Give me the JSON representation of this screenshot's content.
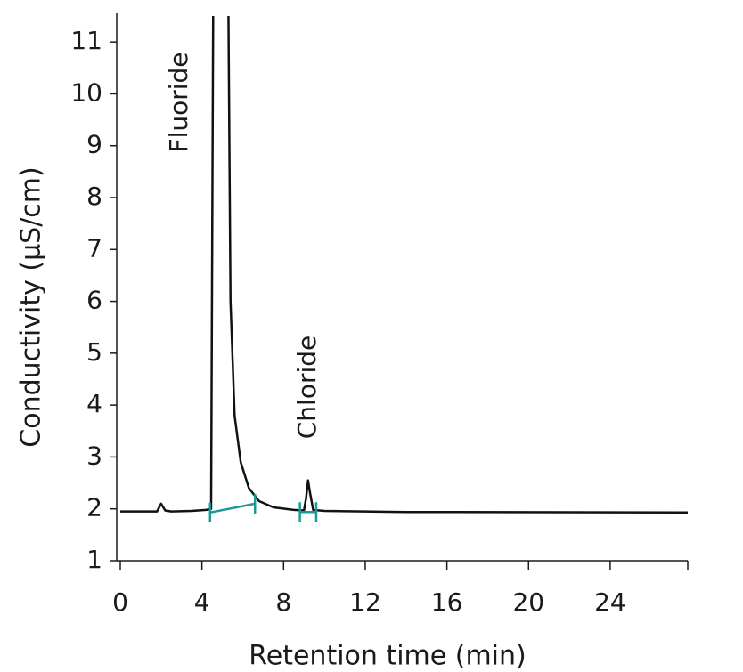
{
  "chart_data": {
    "type": "line",
    "xlabel": "Retention time (min)",
    "ylabel": "Conductivity (µS/cm)",
    "xlim": [
      0,
      27.8
    ],
    "ylim": [
      1,
      11.5
    ],
    "xticks": [
      0,
      4,
      8,
      12,
      16,
      20,
      24
    ],
    "yticks": [
      1,
      2,
      3,
      4,
      5,
      6,
      7,
      8,
      9,
      10,
      11
    ],
    "series": [
      {
        "color": "#111111",
        "x": [
          0,
          1.8,
          2.0,
          2.2,
          2.5,
          3.5,
          4.2,
          4.45,
          4.55,
          null,
          5.3,
          5.4,
          5.6,
          5.9,
          6.3,
          6.8,
          7.5,
          8.5,
          9.0,
          9.1,
          9.2,
          9.3,
          9.45,
          10,
          14,
          27.8
        ],
        "values": [
          1.95,
          1.95,
          2.1,
          1.97,
          1.95,
          1.96,
          1.98,
          2.0,
          11.5,
          null,
          11.5,
          6,
          3.8,
          2.9,
          2.4,
          2.15,
          2.03,
          1.98,
          1.97,
          2.2,
          2.55,
          2.3,
          1.98,
          1.96,
          1.94,
          1.93
        ]
      }
    ],
    "integration_color": "#1a9a96",
    "integration": [
      {
        "x": [
          4.4,
          6.6
        ],
        "y": [
          1.93,
          2.1
        ]
      },
      {
        "x": [
          8.8,
          9.6
        ],
        "y": [
          1.94,
          1.94
        ]
      }
    ],
    "annotations": [
      "Fluoride",
      "Chloride"
    ]
  }
}
